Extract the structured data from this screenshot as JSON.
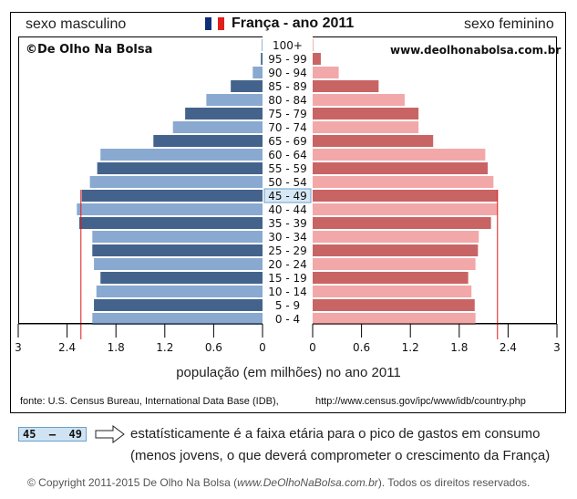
{
  "header": {
    "left_label": "sexo masculino",
    "right_label": "sexo feminino",
    "title": "França - ano 2011",
    "flag_colors": [
      "#0f2d7a",
      "#ffffff",
      "#e0201c"
    ]
  },
  "watermarks": {
    "left": "©De Olho Na Bolsa",
    "right": "www.deolhonabolsa.com.br"
  },
  "chart_data": {
    "type": "bar",
    "subtype": "population-pyramid",
    "title": "França - ano 2011",
    "xlabel": "população (em milhões) no ano 2011",
    "ylabel": "",
    "categories": [
      "100+",
      "95 - 99",
      "90 - 94",
      "85 - 89",
      "80 - 84",
      "75 - 79",
      "70 - 74",
      "65 - 69",
      "60 - 64",
      "55 - 59",
      "50 - 54",
      "45 - 49",
      "40 - 44",
      "35 - 39",
      "30 - 34",
      "25 - 29",
      "20 - 24",
      "15 - 19",
      "10 - 14",
      "5 - 9",
      "0 - 4"
    ],
    "series": [
      {
        "name": "sexo masculino",
        "side": "left",
        "colors": [
          "#44638c",
          "#89a9d0"
        ],
        "values": [
          0.01,
          0.02,
          0.12,
          0.39,
          0.69,
          0.95,
          1.1,
          1.34,
          1.99,
          2.03,
          2.12,
          2.22,
          2.28,
          2.25,
          2.09,
          2.09,
          2.07,
          1.99,
          2.04,
          2.07,
          2.09
        ]
      },
      {
        "name": "sexo feminino",
        "side": "right",
        "colors": [
          "#c96465",
          "#f2a8a9"
        ],
        "values": [
          0.01,
          0.1,
          0.32,
          0.81,
          1.13,
          1.3,
          1.3,
          1.48,
          2.12,
          2.15,
          2.22,
          2.27,
          2.27,
          2.19,
          2.04,
          2.03,
          2.0,
          1.91,
          1.95,
          1.99,
          2.0
        ]
      }
    ],
    "xlim": [
      0,
      3
    ],
    "ticks_left": [
      "3",
      "2.4",
      "1.8",
      "1.2",
      "0.6",
      "0"
    ],
    "ticks_right": [
      "0",
      "0.6",
      "1.2",
      "1.8",
      "2.4",
      "3"
    ],
    "tick_values": [
      0,
      0.6,
      1.2,
      1.8,
      2.4,
      3
    ],
    "reference_lines": {
      "left": 2.23,
      "right": 2.27,
      "color": "#e01818"
    },
    "highlight_category": "45 - 49",
    "grid": false,
    "legend": "none"
  },
  "footer": {
    "source": "fonte: U.S. Census Bureau, International Data Base (IDB),",
    "source_url": "http://www.census.gov/ipc/www/idb/country.php"
  },
  "note": {
    "highlight_label": "45  –  49",
    "line1": "estatísticamente é a faixa etária para o pico de gastos em consumo",
    "line2": "(menos jovens, o que deverá comprometer o crescimento da França)"
  },
  "copyright": {
    "prefix": "© Copyright 2011-2015  De Olho Na Bolsa (",
    "site": "www.DeOlhoNaBolsa.com.br",
    "suffix": "). Todos os direitos reservados."
  }
}
